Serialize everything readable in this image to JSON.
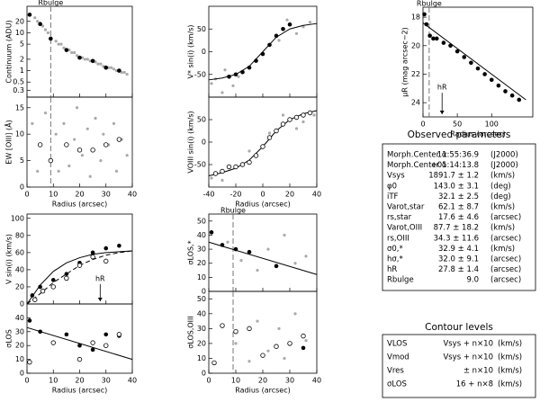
{
  "chart_data": [
    {
      "type": "scatter",
      "ylabel": "Continuum (ADU)",
      "xlim": [
        0,
        40
      ],
      "xticks": [
        0,
        10,
        20,
        30,
        40
      ],
      "xtick_labels": false,
      "log_y": true,
      "ylim": [
        0.2,
        50
      ],
      "yticks": [
        {
          "value": 0.3,
          "label": "0.3"
        },
        {
          "value": 0.5,
          "label": "0.5"
        },
        1,
        2,
        5,
        10,
        20
      ],
      "vlines": [
        {
          "x": 9,
          "label": "Rbulge"
        }
      ],
      "series": [
        {
          "style": "gray",
          "color": "#aaaaaa",
          "x": [
            3,
            4,
            6,
            7,
            8,
            11,
            12,
            13,
            14,
            16,
            17,
            18,
            19,
            21,
            22,
            23,
            24,
            26,
            27,
            28,
            29,
            31,
            32,
            33,
            34,
            36,
            37,
            38
          ],
          "values": [
            25,
            20,
            15,
            12,
            10,
            6,
            5,
            5,
            4,
            3.5,
            3,
            3,
            2.5,
            2.2,
            2,
            2,
            1.8,
            1.7,
            1.5,
            1.5,
            1.3,
            1.2,
            1.2,
            1.1,
            1,
            0.9,
            0.9,
            0.8
          ]
        },
        {
          "style": "filled",
          "color": "#000000",
          "x": [
            1,
            5,
            9,
            15,
            20,
            25,
            30,
            35
          ],
          "values": [
            30,
            17,
            7,
            3.5,
            2.2,
            1.8,
            1.2,
            1.0
          ]
        }
      ]
    },
    {
      "type": "scatter",
      "ylabel": "EW [OIII] (Å)",
      "xlabel": "Radius (arcsec)",
      "xlim": [
        0,
        40
      ],
      "xticks": [
        0,
        10,
        20,
        30,
        40
      ],
      "ylim": [
        0,
        17
      ],
      "yticks": [
        0,
        5,
        10,
        15
      ],
      "vlines": [
        {
          "x": 9
        }
      ],
      "series": [
        {
          "style": "gray",
          "color": "#aaaaaa",
          "x": [
            2,
            4,
            7,
            11,
            12,
            14,
            16,
            18,
            19,
            21,
            23,
            24,
            26,
            28,
            29,
            31,
            33,
            34,
            36,
            38
          ],
          "values": [
            12,
            3,
            14,
            10,
            3,
            12,
            4,
            9,
            15,
            6,
            11,
            2,
            13,
            5,
            10,
            8,
            12,
            3,
            9,
            6
          ]
        },
        {
          "style": "open",
          "color": "#000000",
          "x": [
            5,
            9,
            15,
            20,
            25,
            30,
            35
          ],
          "values": [
            8,
            5,
            8,
            7,
            7,
            8,
            9
          ]
        }
      ]
    },
    {
      "type": "scatter",
      "ylabel": "V* sin(i) (km/s)",
      "xlim": [
        -40,
        40
      ],
      "xticks": [
        -40,
        -20,
        0,
        20,
        40
      ],
      "xtick_labels": false,
      "ylim": [
        -100,
        100
      ],
      "yticks": [
        -50,
        0,
        50
      ],
      "series": [
        {
          "style": "gray",
          "color": "#aaaaaa",
          "x": [
            -38,
            -35,
            -30,
            -28,
            -22,
            -18,
            12,
            18,
            25,
            30,
            35
          ],
          "values": [
            -70,
            -60,
            -90,
            -40,
            -75,
            -55,
            25,
            70,
            40,
            55,
            65
          ]
        },
        {
          "style": "line",
          "color": "#000000",
          "x": [
            -40,
            -30,
            -20,
            -10,
            0,
            10,
            20,
            30,
            40
          ],
          "values": [
            -62,
            -58,
            -50,
            -32,
            0,
            32,
            50,
            58,
            62
          ]
        },
        {
          "style": "filled",
          "color": "#000000",
          "x": [
            -25,
            -20,
            -15,
            -10,
            -5,
            0,
            5,
            10,
            15,
            20
          ],
          "values": [
            -55,
            -50,
            -45,
            -35,
            -20,
            -5,
            15,
            35,
            50,
            60
          ]
        }
      ]
    },
    {
      "type": "scatter",
      "ylabel": "VOIII sin(i) (km/s)",
      "xlabel": "Radius (arcsec)",
      "xlim": [
        -40,
        40
      ],
      "xticks": [
        -40,
        -20,
        0,
        20,
        40
      ],
      "ylim": [
        -100,
        100
      ],
      "yticks": [
        -50,
        0,
        50
      ],
      "series": [
        {
          "style": "gray",
          "color": "#aaaaaa",
          "x": [
            -38,
            -30,
            -10,
            5,
            15,
            25,
            30,
            38
          ],
          "values": [
            -80,
            -85,
            -20,
            20,
            60,
            30,
            45,
            60
          ]
        },
        {
          "style": "line",
          "color": "#000000",
          "x": [
            -40,
            -30,
            -20,
            -10,
            0,
            10,
            20,
            30,
            40
          ],
          "values": [
            -75,
            -68,
            -58,
            -40,
            -10,
            25,
            50,
            63,
            70
          ]
        },
        {
          "style": "open",
          "color": "#000000",
          "x": [
            -35,
            -30,
            -25,
            -20,
            -15,
            -10,
            -5,
            0,
            5,
            10,
            15,
            20,
            25,
            30,
            35
          ],
          "values": [
            -70,
            -65,
            -55,
            -55,
            -50,
            -45,
            -30,
            -10,
            10,
            25,
            40,
            50,
            55,
            60,
            65
          ]
        }
      ]
    },
    {
      "type": "scatter",
      "ylabel": "μR (mag arcsec−2)",
      "xlabel": "Radius (arcsec)",
      "xlim": [
        0,
        160
      ],
      "xticks": [
        0,
        50,
        100
      ],
      "ylim": [
        25,
        17.3
      ],
      "yticks": [
        18,
        20,
        22,
        24
      ],
      "vlines": [
        {
          "x": 9,
          "label": "Rbulge"
        }
      ],
      "arrows": [
        {
          "x": 27.8,
          "label": "hR"
        }
      ],
      "series": [
        {
          "style": "line",
          "color": "#000000",
          "x": [
            0,
            150
          ],
          "values": [
            18.4,
            23.8
          ]
        },
        {
          "style": "filled",
          "color": "#000000",
          "x": [
            2,
            5,
            10,
            15,
            20,
            30,
            40,
            50,
            60,
            70,
            80,
            90,
            100,
            110,
            120,
            130,
            140
          ],
          "values": [
            17.8,
            18.5,
            19.3,
            19.5,
            19.5,
            19.8,
            20.0,
            20.4,
            20.8,
            21.2,
            21.6,
            22.0,
            22.4,
            22.8,
            23.2,
            23.5,
            23.8
          ]
        }
      ]
    },
    {
      "type": "scatter",
      "ylabel": "V sin(i) (km/s)",
      "xlim": [
        0,
        40
      ],
      "xticks": [
        0,
        10,
        20,
        30,
        40
      ],
      "xtick_labels": false,
      "ylim": [
        0,
        105
      ],
      "yticks": [
        0,
        20,
        40,
        60,
        80,
        100
      ],
      "arrows": [
        {
          "x": 27.8,
          "label": "hR"
        }
      ],
      "series": [
        {
          "style": "line",
          "color": "#000000",
          "x": [
            0,
            5,
            10,
            15,
            20,
            25,
            30,
            35,
            40
          ],
          "values": [
            0,
            22,
            38,
            48,
            54,
            58,
            60,
            61,
            62
          ]
        },
        {
          "style": "dashed",
          "color": "#000000",
          "x": [
            0,
            5,
            10,
            15,
            20,
            25,
            30,
            35,
            40
          ],
          "values": [
            0,
            12,
            25,
            35,
            45,
            52,
            57,
            60,
            62
          ]
        },
        {
          "style": "filled",
          "color": "#000000",
          "x": [
            2,
            5,
            10,
            15,
            20,
            25,
            30,
            35
          ],
          "values": [
            10,
            20,
            28,
            35,
            48,
            60,
            65,
            68
          ]
        },
        {
          "style": "open",
          "color": "#000000",
          "x": [
            3,
            6,
            10,
            15,
            20,
            25,
            30
          ],
          "values": [
            5,
            15,
            20,
            30,
            45,
            55,
            50
          ]
        }
      ]
    },
    {
      "type": "scatter",
      "ylabel": "σLOS",
      "xlabel": "Radius (arcsec)",
      "xlim": [
        0,
        40
      ],
      "xticks": [
        0,
        10,
        20,
        30,
        40
      ],
      "ylim": [
        0,
        50
      ],
      "yticks": [
        0,
        10,
        20,
        30,
        40
      ],
      "series": [
        {
          "style": "line",
          "color": "#000000",
          "x": [
            0,
            40
          ],
          "values": [
            33,
            10
          ]
        },
        {
          "style": "filled",
          "color": "#000000",
          "x": [
            1,
            5,
            10,
            15,
            20,
            25,
            30,
            35
          ],
          "values": [
            38,
            30,
            22,
            28,
            20,
            17,
            28,
            27
          ]
        },
        {
          "style": "open",
          "color": "#000000",
          "x": [
            1,
            10,
            20,
            25,
            30,
            35
          ],
          "values": [
            8,
            22,
            10,
            22,
            20,
            28
          ]
        }
      ]
    },
    {
      "type": "scatter",
      "ylabel": "σLOS,*",
      "xlim": [
        0,
        40
      ],
      "xticks": [
        0,
        10,
        20,
        30,
        40
      ],
      "xtick_labels": false,
      "ylim": [
        0,
        55
      ],
      "yticks": [
        0,
        10,
        20,
        30,
        40,
        50
      ],
      "vlines": [
        {
          "x": 9,
          "label": "Rbulge"
        }
      ],
      "series": [
        {
          "style": "gray",
          "color": "#aaaaaa",
          "x": [
            7,
            12,
            18,
            22,
            28,
            32,
            36
          ],
          "values": [
            35,
            22,
            15,
            30,
            40,
            20,
            25
          ]
        },
        {
          "style": "line",
          "color": "#000000",
          "x": [
            0,
            40
          ],
          "values": [
            35,
            12
          ]
        },
        {
          "style": "filled",
          "color": "#000000",
          "x": [
            1,
            5,
            10,
            15,
            25
          ],
          "values": [
            42,
            33,
            30,
            28,
            18
          ]
        }
      ]
    },
    {
      "type": "scatter",
      "ylabel": "σLOS,OIII",
      "xlabel": "Radius (arcsec)",
      "xlim": [
        0,
        40
      ],
      "xticks": [
        0,
        10,
        20,
        30,
        40
      ],
      "ylim": [
        0,
        55
      ],
      "yticks": [
        0,
        10,
        20,
        30,
        40,
        50
      ],
      "vlines": [
        {
          "x": 9
        }
      ],
      "series": [
        {
          "style": "gray",
          "color": "#aaaaaa",
          "x": [
            10,
            15,
            18,
            22,
            26,
            28,
            32,
            36
          ],
          "values": [
            20,
            8,
            35,
            15,
            30,
            10,
            40,
            22
          ]
        },
        {
          "style": "open",
          "color": "#000000",
          "x": [
            2,
            5,
            10,
            15,
            20,
            25,
            30,
            35
          ],
          "values": [
            7,
            32,
            28,
            30,
            12,
            18,
            20,
            25
          ]
        },
        {
          "style": "filled",
          "color": "#000000",
          "x": [
            35
          ],
          "values": [
            17
          ]
        }
      ]
    }
  ],
  "parameters": {
    "title": "Observed parameters",
    "rows": [
      [
        "Morph.Center α",
        "11:55:36.9",
        "(J2000)"
      ],
      [
        "Morph.Center δ",
        "+01:14:13.8",
        "(J2000)"
      ],
      [
        "Vsys",
        "1891.7 ± 1.2",
        "(km/s)"
      ],
      [
        "φ0",
        "143.0 ± 3.1",
        "(deg)"
      ],
      [
        "iTF",
        "32.1 ± 2.5",
        "(deg)"
      ],
      [
        "Varot,star",
        "62.1 ± 8.7",
        "(km/s)"
      ],
      [
        "rs,star",
        "17.6 ± 4.6",
        "(arcsec)"
      ],
      [
        "Varot,OIII",
        "87.7 ± 18.2",
        "(km/s)"
      ],
      [
        "rs,OIII",
        "34.3 ± 11.6",
        "(arcsec)"
      ],
      [
        "σ0,*",
        "32.9 ± 4.1",
        "(km/s)"
      ],
      [
        "hσ,*",
        "32.0 ± 9.1",
        "(arcsec)"
      ],
      [
        "hR",
        "27.8 ± 1.4",
        "(arcsec)"
      ],
      [
        "Rbulge",
        "9.0",
        "(arcsec)"
      ]
    ]
  },
  "contours": {
    "title": "Contour levels",
    "rows": [
      [
        "VLOS",
        "Vsys + n×10",
        "(km/s)"
      ],
      [
        "Vmod",
        "Vsys + n×10",
        "(km/s)"
      ],
      [
        "Vres",
        "± n×10",
        "(km/s)"
      ],
      [
        "σLOS",
        "16 + n×8",
        "(km/s)"
      ]
    ]
  }
}
